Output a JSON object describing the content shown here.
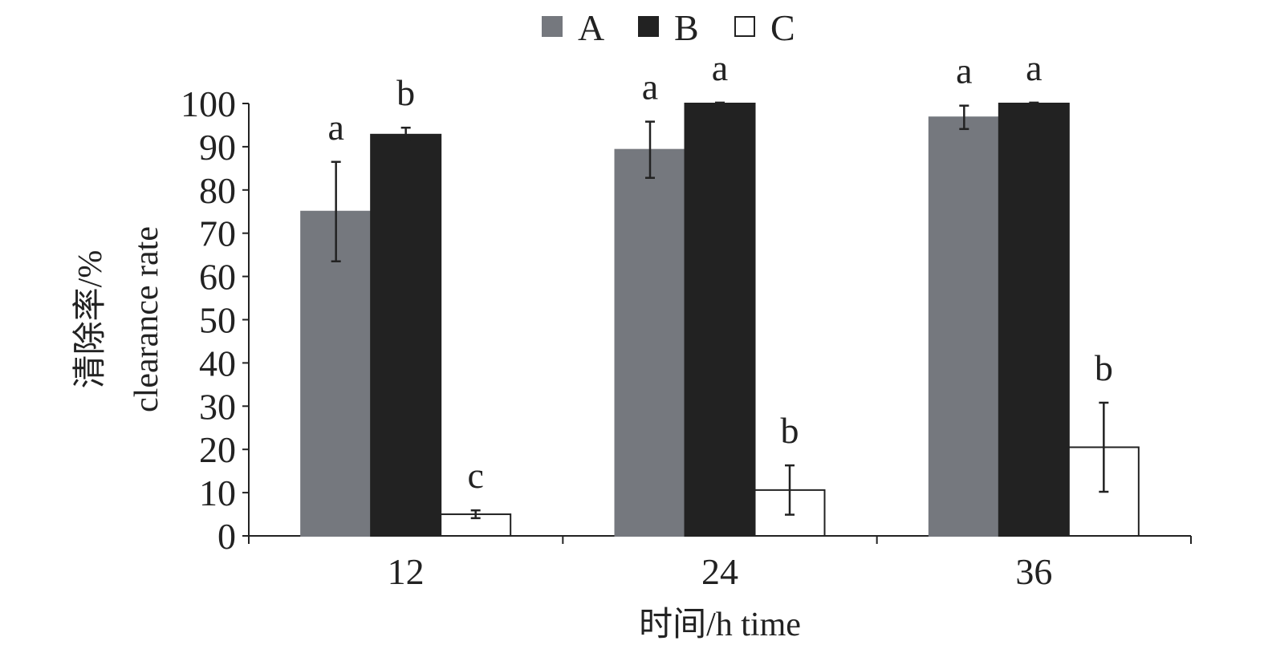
{
  "chart_data": {
    "type": "bar",
    "categories": [
      "12",
      "24",
      "36"
    ],
    "series": [
      {
        "name": "A",
        "values": [
          75,
          89.3,
          96.8
        ],
        "error": [
          11.5,
          6.5,
          2.7
        ],
        "letters": [
          "a",
          "a",
          "a"
        ],
        "color": "#75787e",
        "stroke": "#75787e"
      },
      {
        "name": "B",
        "values": [
          92.8,
          100,
          100
        ],
        "error": [
          1.6,
          0.2,
          0.2
        ],
        "letters": [
          "b",
          "a",
          "a"
        ],
        "color": "#222222",
        "stroke": "#222222"
      },
      {
        "name": "C",
        "values": [
          5,
          10.6,
          20.5
        ],
        "error": [
          0.9,
          5.7,
          10.3
        ],
        "letters": [
          "c",
          "b",
          "b"
        ],
        "color": "#ffffff",
        "stroke": "#222222"
      }
    ],
    "y_ticks": [
      "0",
      "10",
      "20",
      "30",
      "40",
      "50",
      "60",
      "70",
      "80",
      "90",
      "100"
    ],
    "ylim": [
      0,
      100
    ],
    "ylabel_line1": "清除率/%",
    "ylabel_line2": "clearance rate",
    "xlabel": "时间/h time",
    "legend_position": "top-center",
    "grid": false
  }
}
